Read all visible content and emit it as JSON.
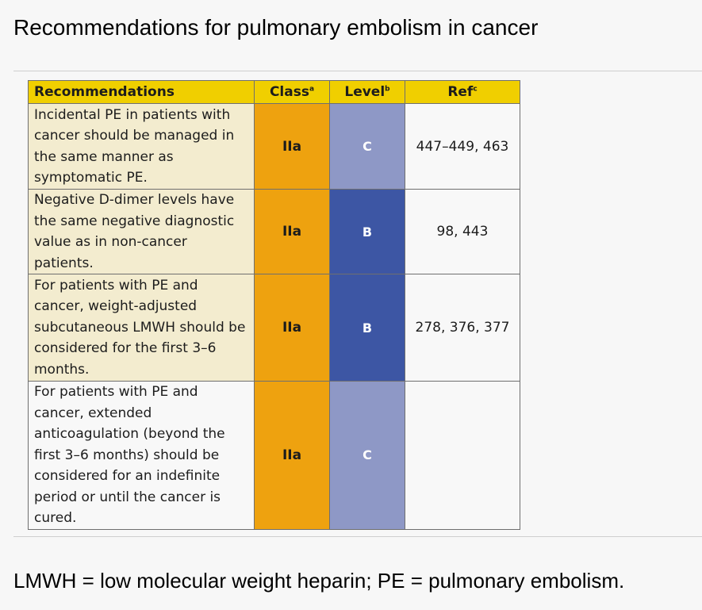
{
  "page": {
    "title": "Recommendations for pulmonary embolism in cancer",
    "footnote": "LMWH = low molecular weight heparin; PE = pulmonary embolism."
  },
  "table": {
    "headers": {
      "recommendations": "Recommendations",
      "class": "Class",
      "class_sup": "a",
      "level": "Level",
      "level_sup": "b",
      "ref": "Ref",
      "ref_sup": "c"
    },
    "rows": [
      {
        "recommendation": "Incidental PE in patients with cancer should be managed in the same manner as symptomatic PE.",
        "class": "IIa",
        "level": "C",
        "ref": "447–449, 463"
      },
      {
        "recommendation": "Negative D-dimer levels have the same negative diagnostic value as in non-cancer patients.",
        "class": "IIa",
        "level": "B",
        "ref": "98, 443"
      },
      {
        "recommendation": "For patients with PE and cancer, weight-adjusted subcutaneous LMWH should be considered for the first 3–6 months.",
        "class": "IIa",
        "level": "B",
        "ref": "278, 376, 377"
      },
      {
        "recommendation": "For patients with PE and cancer, extended anticoagulation (beyond the first 3–6 months) should be considered for an indefinite period or until the cancer is cured.",
        "class": "IIa",
        "level": "C",
        "ref": ""
      }
    ]
  },
  "colors": {
    "header_yellow": "#f0cf00",
    "class_orange": "#eea20f",
    "level_c_lavender": "#8e98c6",
    "level_b_blue": "#3d56a4",
    "recommendation_shade": "#f3eccf"
  }
}
